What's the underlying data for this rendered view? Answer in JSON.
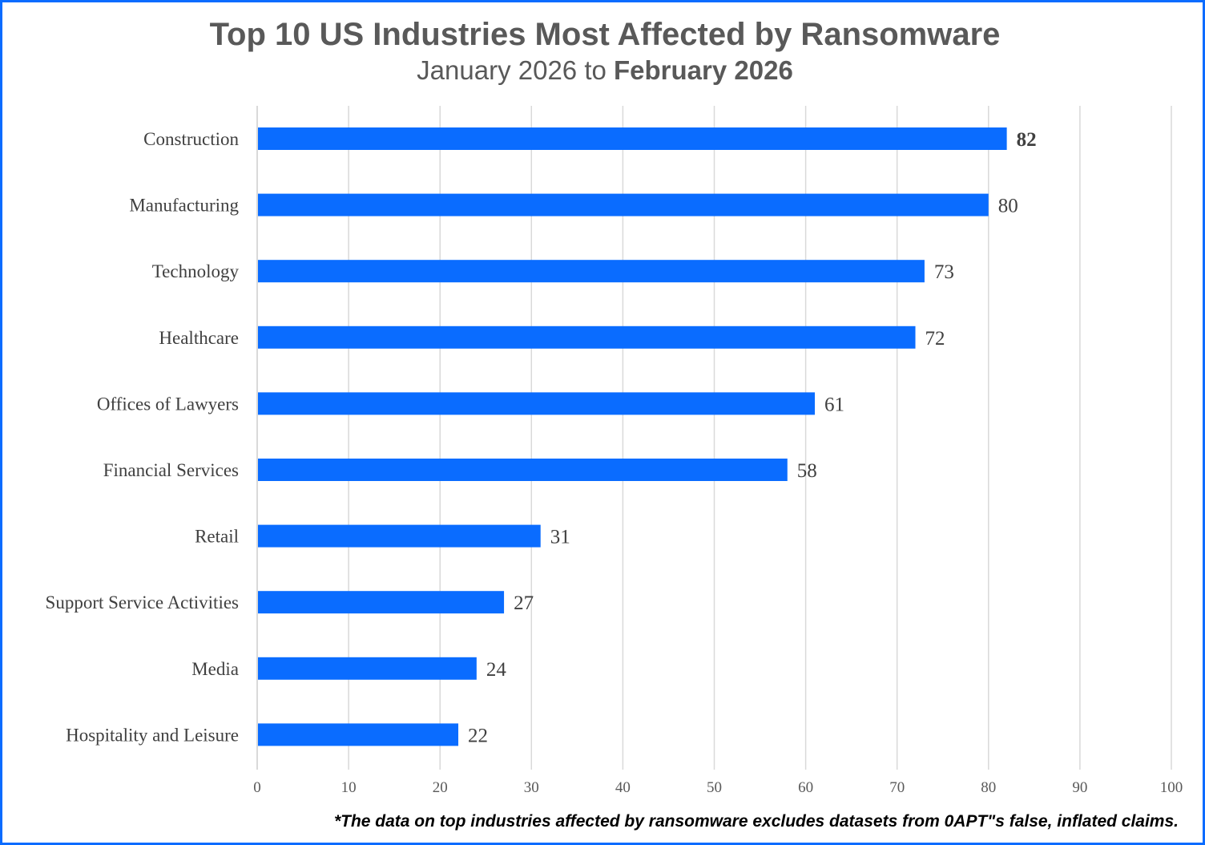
{
  "chart_data": {
    "type": "bar",
    "orientation": "horizontal",
    "title": "Top 10 US Industries Most Affected by Ransomware",
    "subtitle": {
      "regular": "January 2026 to",
      "bold": "February 2026"
    },
    "categories": [
      "Construction",
      "Manufacturing",
      "Technology",
      "Healthcare",
      "Offices of Lawyers",
      "Financial Services",
      "Retail",
      "Support Service Activities",
      "Media",
      "Hospitality and Leisure"
    ],
    "values": [
      82,
      80,
      73,
      72,
      61,
      58,
      31,
      27,
      24,
      22
    ],
    "xlim": [
      0,
      100
    ],
    "xticks": [
      "0",
      "10",
      "20",
      "30",
      "40",
      "50",
      "60",
      "70",
      "80",
      "90",
      "100"
    ],
    "grid": true,
    "bar_color": "#0a6cff",
    "highlight_label": "82",
    "footnote": "*The data on top industries affected by ransomware excludes datasets from 0APT\"s false, inflated claims."
  }
}
